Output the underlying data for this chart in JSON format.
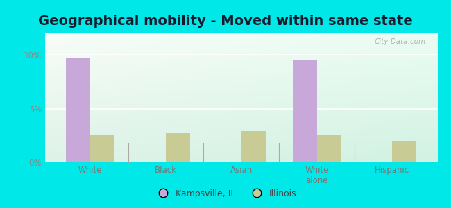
{
  "title": "Geographical mobility - Moved within same state",
  "categories": [
    "White",
    "Black",
    "Asian",
    "White\nalone",
    "Hispanic"
  ],
  "kampsville_values": [
    9.7,
    0,
    0,
    9.5,
    0
  ],
  "illinois_values": [
    2.6,
    2.7,
    2.9,
    2.6,
    2.0
  ],
  "kampsville_color": "#c8a8d8",
  "illinois_color": "#c8cc94",
  "background_outer": "#00e8e8",
  "ylim": [
    0,
    12
  ],
  "yticks": [
    0,
    5,
    10
  ],
  "ytick_labels": [
    "0%",
    "5%",
    "10%"
  ],
  "bar_width": 0.32,
  "title_fontsize": 14,
  "tick_fontsize": 8.5,
  "legend_labels": [
    "Kampsville, IL",
    "Illinois"
  ],
  "watermark": "City-Data.com"
}
